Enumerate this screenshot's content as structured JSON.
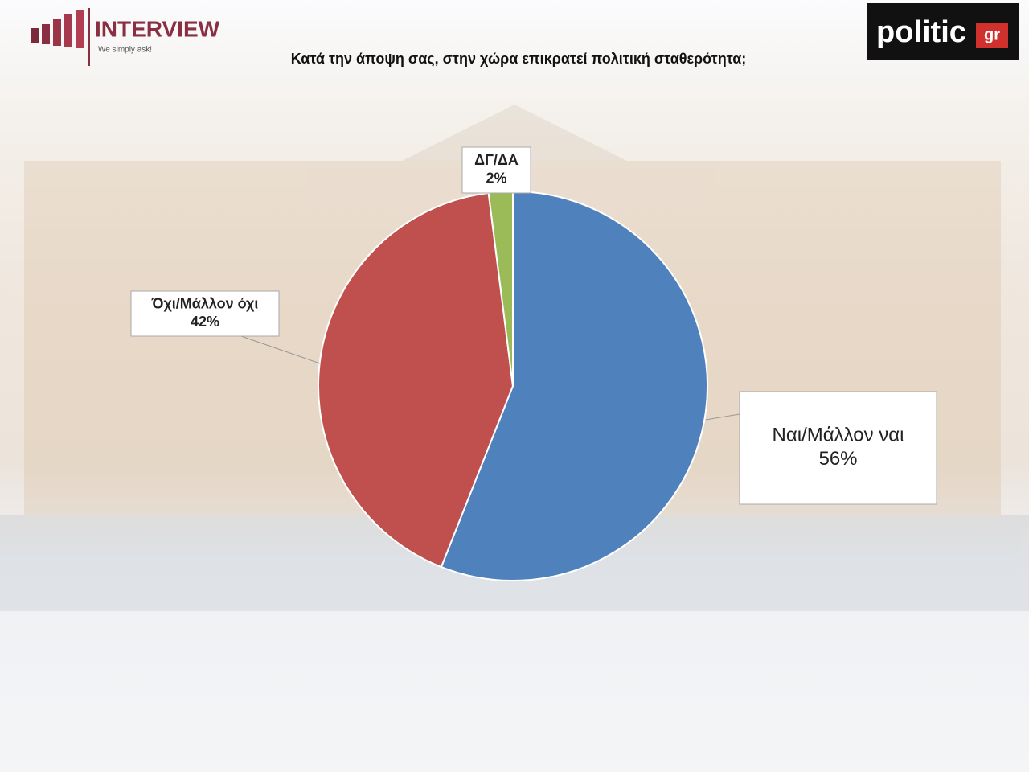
{
  "branding": {
    "interview": "INTERVIEW",
    "slogan": "We simply ask!",
    "politic": "politic",
    "gr": "gr"
  },
  "chart_data": {
    "type": "pie",
    "title": "Κατά την άποψη σας, στην χώρα επικρατεί πολιτική σταθερότητα;",
    "categories": [
      "Ναι/Μάλλον ναι",
      "Όχι/Μάλλον όχι",
      "ΔΓ/ΔΑ"
    ],
    "values": [
      56,
      42,
      2
    ],
    "value_labels": [
      "56%",
      "42%",
      "2%"
    ],
    "colors": [
      "#4f81bd",
      "#c0504d",
      "#9bbb59"
    ]
  }
}
